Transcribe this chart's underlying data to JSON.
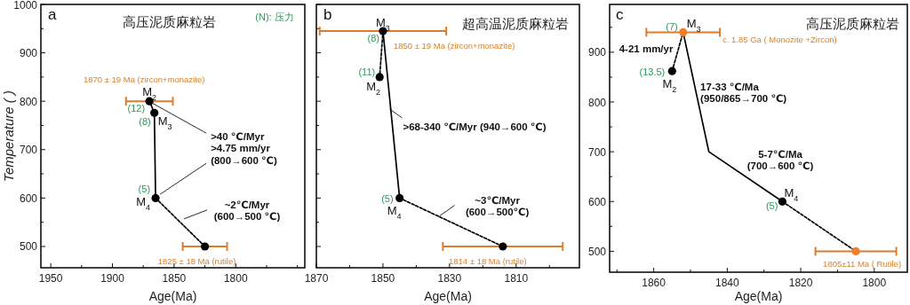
{
  "chart_data": [
    {
      "type": "line",
      "title": "高压泥质麻粒岩",
      "xlabel": "Age(Ma)",
      "ylabel": "Temperature (  )",
      "xlim": [
        1958,
        1744
      ],
      "ylim": [
        456,
        1000
      ],
      "xticks": [
        1950,
        {
          "value": 1925,
          "label": null
        },
        1900,
        {
          "value": 1875,
          "label": null
        },
        1850,
        {
          "value": 1825,
          "label": null
        },
        1800,
        {
          "value": 1775,
          "label": null
        },
        {
          "value": 1750,
          "label": null
        }
      ],
      "yticks": [
        500,
        {
          "value": 550,
          "label": null
        },
        600,
        {
          "value": 650,
          "label": null
        },
        700,
        {
          "value": 750,
          "label": null
        },
        800,
        {
          "value": 850,
          "label": null
        },
        900,
        {
          "value": 950,
          "label": null
        },
        1000
      ],
      "series": [
        {
          "type": "line",
          "x": [
            1870,
            1866,
            1865
          ],
          "values": [
            800,
            776,
            600
          ],
          "color": "#000000",
          "line_style": "solid",
          "marker": "none"
        },
        {
          "type": "line",
          "x": [
            1865,
            1825
          ],
          "values": [
            600,
            500
          ],
          "color": "#000000",
          "line_style": "dashed",
          "marker": "none"
        },
        {
          "type": "scatter",
          "x": [
            1870,
            1866,
            1865,
            1825
          ],
          "values": [
            800,
            776,
            600,
            500
          ],
          "xerrors": [
            19,
            null,
            null,
            18
          ],
          "color": "#000000",
          "marker": "circle"
        }
      ],
      "annotations": [
        "a",
        "(N): 压力",
        {
          "text": "M$_{2}$",
          "x": 1870,
          "y": 800
        },
        {
          "text": "(12)",
          "x": 1870,
          "y": 800
        },
        {
          "text": "M$_{3}$",
          "x": 1866,
          "y": 776
        },
        {
          "text": "(8)",
          "x": 1866,
          "y": 776
        },
        {
          "text": "M$_{4}$",
          "x": 1865,
          "y": 600
        },
        {
          "text": "(5)",
          "x": 1865,
          "y": 600
        },
        {
          "text": ">40 ℃/Myr\n>4.75 mm/yr\n(800→600 ℃)",
          "x": 1870,
          "y": 800
        },
        {
          "text": "~2℃/Myr\n(600→500 ℃)",
          "x": 1842,
          "y": 557
        },
        {
          "text": "1870 ± 19 Ma (zircon+monazite)",
          "x": 1870,
          "y": 800
        },
        {
          "text": "1825 ± 18 Ma (rutile)",
          "x": 1825,
          "y": 500
        }
      ]
    },
    {
      "type": "line",
      "title": "超高温泥质麻粒岩",
      "xlabel": "Age(Ma)",
      "xlim": [
        1870,
        1791
      ],
      "ylim": [
        456,
        1000
      ],
      "tick_labels": "x",
      "xticks": [
        1870,
        {
          "value": 1860,
          "label": null
        },
        1850,
        {
          "value": 1840,
          "label": null
        },
        1830,
        {
          "value": 1820,
          "label": null
        },
        1810,
        {
          "value": 1800,
          "label": null
        }
      ],
      "yticks": [
        500,
        {
          "value": 550,
          "label": null
        },
        600,
        {
          "value": 650,
          "label": null
        },
        700,
        {
          "value": 750,
          "label": null
        },
        800,
        {
          "value": 850,
          "label": null
        },
        900,
        {
          "value": 950,
          "label": null
        },
        1000
      ],
      "series": [
        {
          "type": "line",
          "x": [
            1850,
            1851
          ],
          "values": [
            945,
            850
          ],
          "color": "#000000",
          "line_style": "dashed",
          "marker": "none"
        },
        {
          "type": "line",
          "x": [
            1850,
            1845
          ],
          "values": [
            945,
            600
          ],
          "color": "#000000",
          "line_style": "solid",
          "marker": "none"
        },
        {
          "type": "line",
          "x": [
            1845,
            1814
          ],
          "values": [
            600,
            500
          ],
          "color": "#000000",
          "line_style": "dashed",
          "marker": "none"
        },
        {
          "type": "scatter",
          "x": [
            1850,
            1851,
            1845,
            1814
          ],
          "values": [
            945,
            850,
            600,
            500
          ],
          "xerrors": [
            19,
            null,
            null,
            18
          ],
          "color": "#000000",
          "marker": "circle"
        }
      ],
      "annotations": [
        "b",
        {
          "text": "M$_{3}$",
          "x": 1850,
          "y": 945
        },
        {
          "text": "(8)",
          "x": 1850,
          "y": 945
        },
        {
          "text": "M$_{2}$",
          "x": 1851,
          "y": 850
        },
        {
          "text": "(11)",
          "x": 1851,
          "y": 850
        },
        {
          "text": "M$_{4}$",
          "x": 1845,
          "y": 600
        },
        {
          "text": "(5)",
          "x": 1845,
          "y": 600
        },
        {
          "text": ">68-340 ℃/Myr (940→600 ℃)",
          "x": 1848,
          "y": 784
        },
        {
          "text": "~3℃/Myr\n(600→500℃)",
          "x": 1833,
          "y": 563
        },
        {
          "text": "1850 ± 19 Ma (zircon+monazite)",
          "x": 1850,
          "y": 945
        },
        {
          "text": "1814 ± 18 Ma (rutile)",
          "x": 1814,
          "y": 500
        }
      ]
    },
    {
      "type": "line",
      "title": "高压泥质麻粒岩",
      "xlabel": "Age(Ma)",
      "xlim": [
        1872,
        1791
      ],
      "ylim": [
        458,
        996
      ],
      "xticks": [
        {
          "value": 1870,
          "label": null
        },
        1860,
        {
          "value": 1850,
          "label": null
        },
        1840,
        {
          "value": 1830,
          "label": null
        },
        1820,
        {
          "value": 1810,
          "label": null
        },
        1800
      ],
      "yticks": [
        500,
        {
          "value": 550,
          "label": null
        },
        600,
        {
          "value": 650,
          "label": null
        },
        700,
        {
          "value": 750,
          "label": null
        },
        800,
        {
          "value": 850,
          "label": null
        },
        900,
        {
          "value": 950,
          "label": null
        }
      ],
      "series": [
        {
          "type": "line",
          "x": [
            1855,
            1852
          ],
          "values": [
            862,
            940
          ],
          "color": "#000000",
          "line_style": "dashed",
          "marker": "none"
        },
        {
          "type": "line",
          "x": [
            1852,
            1845,
            1825
          ],
          "values": [
            940,
            700,
            600
          ],
          "color": "#000000",
          "line_style": "solid",
          "marker": "none"
        },
        {
          "type": "line",
          "x": [
            1825,
            1805
          ],
          "values": [
            600,
            500
          ],
          "color": "#000000",
          "line_style": "dashed",
          "marker": "none"
        },
        {
          "type": "scatter",
          "x": [
            1855,
            1825
          ],
          "values": [
            862,
            600
          ],
          "color": "#000000",
          "marker": "circle"
        },
        {
          "type": "scatter",
          "x": [
            1852,
            1805
          ],
          "values": [
            940,
            500
          ],
          "xerrors": [
            10,
            11
          ],
          "color": "#f07f2a",
          "marker": "circle"
        }
      ],
      "annotations": [
        "c",
        {
          "text": "(7)",
          "x": 1852,
          "y": 940
        },
        {
          "text": "M$_{3}$",
          "x": 1852,
          "y": 940
        },
        {
          "text": "(13.5)",
          "x": 1855,
          "y": 862
        },
        {
          "text": "M$_{2}$",
          "x": 1855,
          "y": 862
        },
        {
          "text": "M$_{4}$",
          "x": 1825,
          "y": 600
        },
        {
          "text": "(5)",
          "x": 1825,
          "y": 600
        },
        {
          "text": "4-21 mm/yr",
          "x": 1854,
          "y": 900
        },
        {
          "text": "17-33 ℃/Ma\n(950/865→700 ℃)",
          "x": 1849,
          "y": 820
        },
        {
          "text": "5-7℃/Ma\n(700→600 ℃)",
          "x": 1835,
          "y": 650
        },
        {
          "text": "c. 1.85 Ga ( Monozite +Zircon)",
          "x": 1842,
          "y": 940
        },
        {
          "text": "1805±11 Ma ( Rutile)",
          "x": 1805,
          "y": 500
        }
      ]
    }
  ]
}
